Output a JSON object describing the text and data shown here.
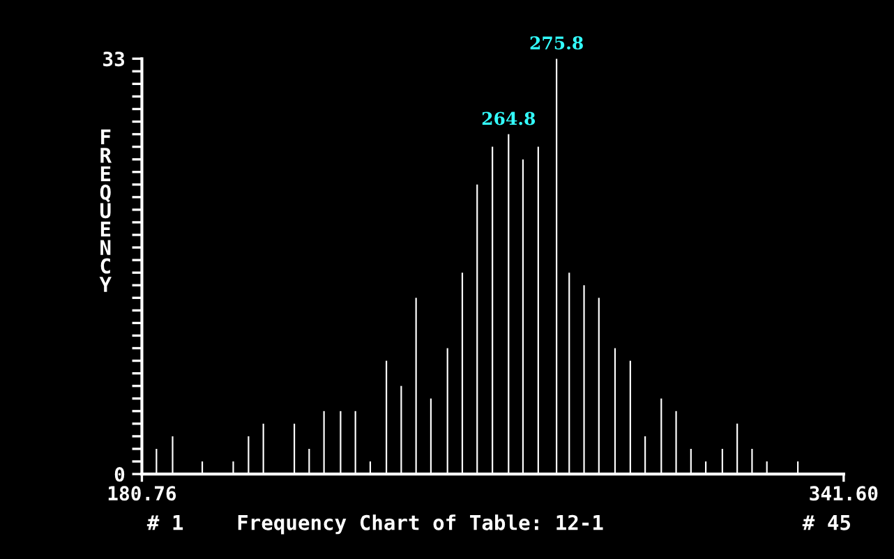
{
  "chart_data": {
    "type": "bar",
    "title": "Frequency Chart of Table: 12-1",
    "ylabel": "FREQUENCY",
    "x": [
      184.1,
      187.8,
      194.6,
      201.7,
      205.2,
      208.6,
      215.7,
      219.1,
      222.5,
      226.3,
      229.7,
      233.1,
      236.8,
      240.2,
      243.6,
      247.0,
      250.8,
      254.2,
      257.6,
      261.1,
      264.8,
      268.1,
      271.6,
      275.8,
      278.7,
      282.1,
      285.5,
      289.2,
      292.7,
      296.1,
      299.8,
      303.2,
      306.6,
      310.0,
      313.8,
      317.2,
      320.6,
      324.0,
      331.1
    ],
    "values": [
      2,
      3,
      1,
      1,
      3,
      4,
      4,
      2,
      5,
      5,
      5,
      1,
      9,
      7,
      14,
      6,
      10,
      16,
      23,
      26,
      27,
      25,
      26,
      33,
      16,
      15,
      14,
      10,
      9,
      3,
      6,
      5,
      2,
      1,
      2,
      4,
      2,
      1,
      1
    ],
    "color": "#ffffff",
    "xlim": [
      180.76,
      341.6
    ],
    "xticks": [
      {
        "value": 180.76,
        "label": "180.76"
      },
      {
        "value": 341.6,
        "label": "341.60"
      }
    ],
    "ylim": [
      0,
      33
    ],
    "yticks": [
      0,
      {
        "value": 1,
        "label": null
      },
      {
        "value": 2,
        "label": null
      },
      {
        "value": 3,
        "label": null
      },
      {
        "value": 4,
        "label": null
      },
      {
        "value": 5,
        "label": null
      },
      {
        "value": 6,
        "label": null
      },
      {
        "value": 7,
        "label": null
      },
      {
        "value": 8,
        "label": null
      },
      {
        "value": 9,
        "label": null
      },
      {
        "value": 10,
        "label": null
      },
      {
        "value": 11,
        "label": null
      },
      {
        "value": 12,
        "label": null
      },
      {
        "value": 13,
        "label": null
      },
      {
        "value": 14,
        "label": null
      },
      {
        "value": 15,
        "label": null
      },
      {
        "value": 16,
        "label": null
      },
      {
        "value": 17,
        "label": null
      },
      {
        "value": 18,
        "label": null
      },
      {
        "value": 19,
        "label": null
      },
      {
        "value": 20,
        "label": null
      },
      {
        "value": 21,
        "label": null
      },
      {
        "value": 22,
        "label": null
      },
      {
        "value": 23,
        "label": null
      },
      {
        "value": 24,
        "label": null
      },
      {
        "value": 25,
        "label": null
      },
      {
        "value": 26,
        "label": null
      },
      {
        "value": 27,
        "label": null
      },
      {
        "value": 28,
        "label": null
      },
      {
        "value": 29,
        "label": null
      },
      {
        "value": 30,
        "label": null
      },
      {
        "value": 31,
        "label": null
      },
      {
        "value": 32,
        "label": null
      },
      33
    ],
    "annotations": [
      {
        "text": "264.8",
        "x": 264.8,
        "y": 27
      },
      {
        "text": "275.8",
        "x": 275.8,
        "y": 33
      },
      "# 1",
      "# 45"
    ],
    "grid": false,
    "legend": false
  }
}
